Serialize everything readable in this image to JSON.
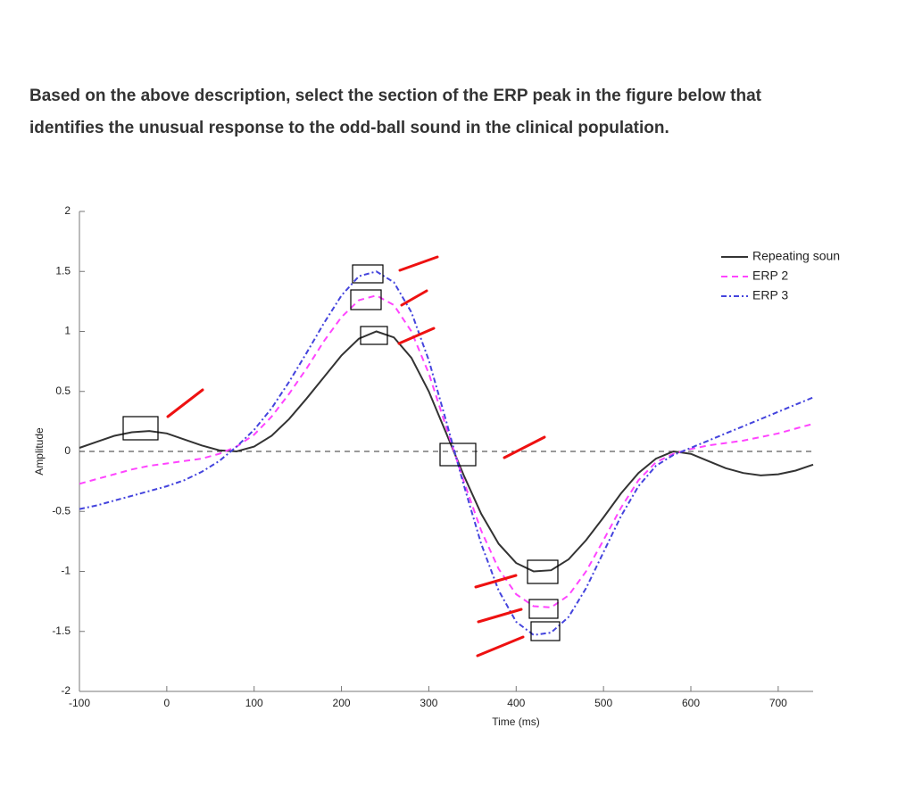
{
  "question": "Based on the above description, select the section of the ERP peak in the figure below that identifies the unusual response to the odd-ball sound in the clinical population.",
  "chart_data": {
    "type": "line",
    "xlabel": "Time (ms)",
    "ylabel": "Amplitude",
    "x": [
      -100,
      -80,
      -60,
      -40,
      -20,
      0,
      20,
      40,
      60,
      80,
      100,
      120,
      140,
      160,
      180,
      200,
      220,
      240,
      260,
      280,
      300,
      320,
      340,
      360,
      380,
      400,
      420,
      440,
      460,
      480,
      500,
      520,
      540,
      560,
      580,
      600,
      620,
      640,
      660,
      680,
      700,
      720,
      740
    ],
    "series": [
      {
        "name": "Repeating soun",
        "color": "#333333",
        "dash": "solid",
        "values": [
          0.03,
          0.08,
          0.13,
          0.16,
          0.17,
          0.15,
          0.1,
          0.05,
          0.01,
          0.0,
          0.04,
          0.13,
          0.27,
          0.44,
          0.62,
          0.8,
          0.94,
          1.0,
          0.95,
          0.78,
          0.5,
          0.15,
          -0.2,
          -0.52,
          -0.77,
          -0.93,
          -1.0,
          -0.99,
          -0.9,
          -0.74,
          -0.55,
          -0.35,
          -0.18,
          -0.06,
          0.0,
          -0.02,
          -0.08,
          -0.14,
          -0.18,
          -0.2,
          -0.19,
          -0.16,
          -0.11
        ]
      },
      {
        "name": "ERP 2",
        "color": "#ff44ff",
        "dash": "dashed",
        "values": [
          -0.27,
          -0.23,
          -0.19,
          -0.15,
          -0.12,
          -0.1,
          -0.08,
          -0.06,
          -0.02,
          0.04,
          0.14,
          0.29,
          0.48,
          0.69,
          0.92,
          1.12,
          1.26,
          1.3,
          1.22,
          1.0,
          0.65,
          0.2,
          -0.25,
          -0.66,
          -0.98,
          -1.19,
          -1.29,
          -1.3,
          -1.2,
          -1.0,
          -0.74,
          -0.47,
          -0.24,
          -0.09,
          -0.02,
          0.02,
          0.05,
          0.07,
          0.09,
          0.12,
          0.15,
          0.19,
          0.23
        ]
      },
      {
        "name": "ERP 3",
        "color": "#4444dd",
        "dash": "dashdot",
        "values": [
          -0.48,
          -0.45,
          -0.41,
          -0.37,
          -0.33,
          -0.29,
          -0.24,
          -0.17,
          -0.08,
          0.04,
          0.18,
          0.36,
          0.58,
          0.82,
          1.07,
          1.3,
          1.46,
          1.5,
          1.41,
          1.16,
          0.76,
          0.25,
          -0.28,
          -0.77,
          -1.16,
          -1.42,
          -1.53,
          -1.51,
          -1.38,
          -1.14,
          -0.84,
          -0.54,
          -0.29,
          -0.12,
          -0.03,
          0.03,
          0.09,
          0.15,
          0.21,
          0.27,
          0.33,
          0.39,
          0.45
        ]
      }
    ],
    "xlim": [
      -100,
      740
    ],
    "ylim": [
      -2,
      2
    ],
    "xticks": [
      -100,
      0,
      100,
      200,
      300,
      400,
      500,
      600,
      700
    ],
    "yticks": [
      -2,
      -1.5,
      -1,
      -0.5,
      0,
      0.5,
      1,
      1.5,
      2
    ],
    "baseline": 0,
    "legend": "upper right"
  }
}
